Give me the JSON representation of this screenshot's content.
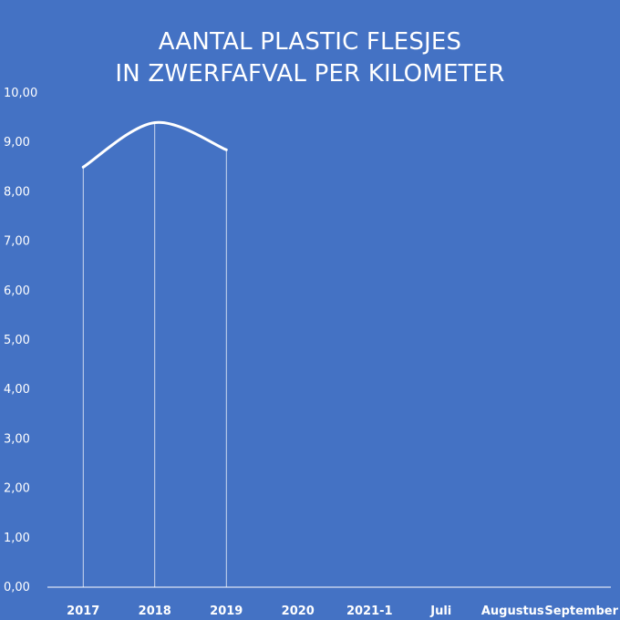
{
  "colors": {
    "background": "#4472c4",
    "line": "#ffffff",
    "axis": "#ffffff"
  },
  "chart_data": {
    "type": "line",
    "title": "AANTAL PLASTIC FLESJES IN ZWERFAFVAL PER KILOMETER",
    "title_lines": [
      "AANTAL PLASTIC FLESJES",
      "IN ZWERFAFVAL PER KILOMETER"
    ],
    "categories": [
      "2017",
      "2018",
      "2019",
      "2020",
      "2021-1",
      "Juli",
      "Augustus",
      "September"
    ],
    "series": [
      {
        "values": [
          8.5,
          9.4,
          8.85,
          null,
          null,
          null,
          null,
          null
        ]
      }
    ],
    "ylim": [
      0,
      10
    ],
    "yticks": [
      "0,00",
      "1,00",
      "2,00",
      "3,00",
      "4,00",
      "5,00",
      "6,00",
      "7,00",
      "8,00",
      "9,00",
      "10,00"
    ],
    "xlabel": "",
    "ylabel": "",
    "grid": false,
    "legend": "none",
    "drop_lines": true,
    "smooth": true
  }
}
